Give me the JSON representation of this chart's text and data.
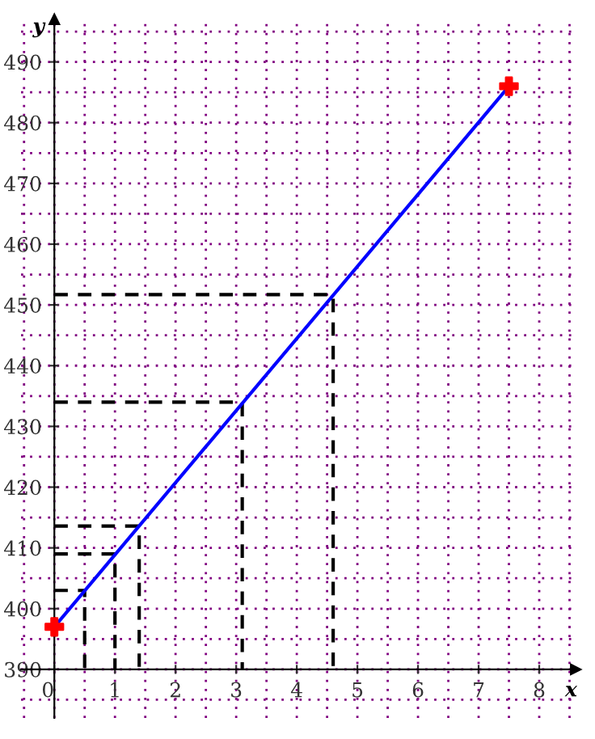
{
  "chart_data": {
    "type": "line",
    "xlabel": "x",
    "ylabel": "y",
    "xlim": [
      -0.55,
      8.6
    ],
    "ylim": [
      382,
      497
    ],
    "xticks": [
      0,
      1,
      2,
      3,
      4,
      5,
      6,
      7,
      8
    ],
    "yticks": [
      390,
      400,
      410,
      420,
      430,
      440,
      450,
      460,
      470,
      480,
      490
    ],
    "grid": true,
    "series": [
      {
        "color": "#0000ff",
        "x": [
          0,
          7.5
        ],
        "values": [
          397,
          486
        ]
      },
      {
        "type": "scatter",
        "color": "#ff0000",
        "marker": "cross",
        "x": [
          0,
          7.5
        ],
        "values": [
          397,
          486
        ]
      },
      {
        "color": "#000000",
        "line_style": "dashed",
        "x": [
          0,
          0.5,
          0.5
        ],
        "values": [
          403,
          403,
          390
        ]
      },
      {
        "color": "#000000",
        "line_style": "dashed",
        "x": [
          0,
          1,
          1
        ],
        "values": [
          409,
          409,
          390
        ]
      },
      {
        "color": "#000000",
        "line_style": "dashed",
        "x": [
          0,
          1.4,
          1.4
        ],
        "values": [
          413.6,
          413.6,
          390
        ]
      },
      {
        "color": "#000000",
        "line_style": "dashed",
        "x": [
          0,
          3.1,
          3.1
        ],
        "values": [
          434,
          434,
          390
        ]
      },
      {
        "color": "#000000",
        "line_style": "dashed",
        "x": [
          0,
          4.6,
          4.6
        ],
        "values": [
          451.7,
          451.7,
          390
        ]
      }
    ]
  }
}
